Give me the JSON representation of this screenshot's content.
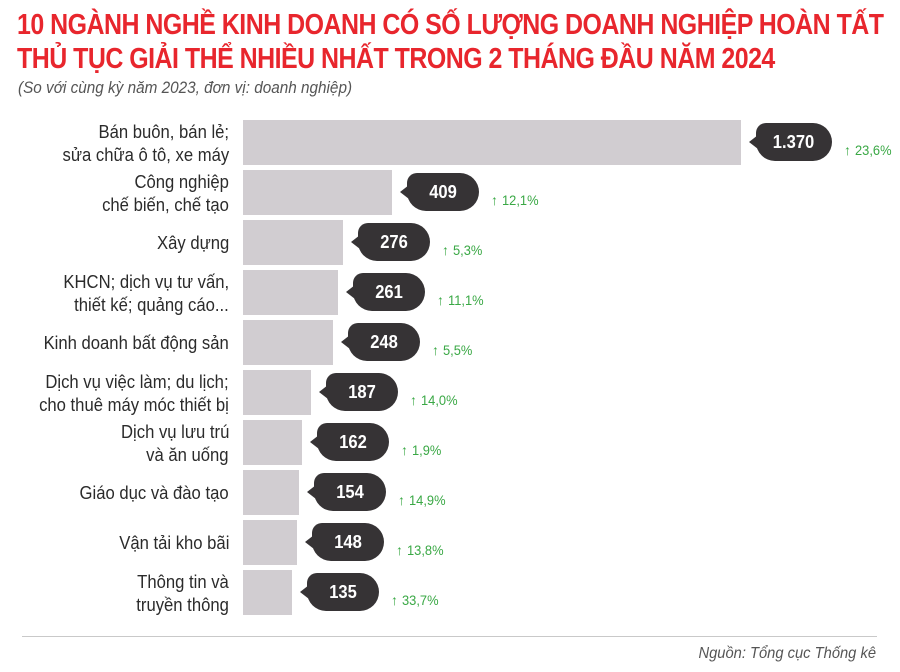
{
  "header": {
    "title_line1": "10 NGÀNH NGHỀ KINH DOANH CÓ SỐ LƯỢNG DOANH NGHIỆP HOÀN TẤT",
    "title_line2": "THỦ TỤC GIẢI THỂ NHIỀU NHẤT TRONG 2 THÁNG ĐẦU NĂM 2024",
    "subtitle": "(So với cùng kỳ năm 2023, đơn vị: doanh nghiệp)"
  },
  "footer": {
    "source": "Nguồn: Tổng cục Thống kê"
  },
  "colors": {
    "title": "#e8262d",
    "bar": "#d1cdd1",
    "bubble": "#363335",
    "increase": "#3aa845",
    "label": "#2b2b2b"
  },
  "icons": {
    "increase": "up-arrow-icon"
  },
  "rows": [
    {
      "label_line1": "Bán buôn, bán lẻ;",
      "label_line2": "sửa chữa ô tô, xe máy",
      "value_text": "1.370",
      "change": "23,6%",
      "arrow": "↑"
    },
    {
      "label_line1": "Công nghiệp",
      "label_line2": "chế biến, chế tạo",
      "value_text": "409",
      "change": "12,1%",
      "arrow": "↑"
    },
    {
      "label_line1": "Xây dựng",
      "label_line2": "",
      "value_text": "276",
      "change": "5,3%",
      "arrow": "↑"
    },
    {
      "label_line1": "KHCN; dịch vụ tư vấn,",
      "label_line2": "thiết kế; quảng cáo...",
      "value_text": "261",
      "change": "11,1%",
      "arrow": "↑"
    },
    {
      "label_line1": "Kinh doanh bất động sản",
      "label_line2": "",
      "value_text": "248",
      "change": "5,5%",
      "arrow": "↑"
    },
    {
      "label_line1": "Dịch vụ việc làm; du lịch;",
      "label_line2": "cho thuê máy móc thiết bị",
      "value_text": "187",
      "change": "14,0%",
      "arrow": "↑"
    },
    {
      "label_line1": "Dịch vụ lưu trú",
      "label_line2": "và ăn uống",
      "value_text": "162",
      "change": "1,9%",
      "arrow": "↑"
    },
    {
      "label_line1": "Giáo dục và đào tạo",
      "label_line2": "",
      "value_text": "154",
      "change": "14,9%",
      "arrow": "↑"
    },
    {
      "label_line1": "Vận tải kho bãi",
      "label_line2": "",
      "value_text": "148",
      "change": "13,8%",
      "arrow": "↑"
    },
    {
      "label_line1": "Thông tin và",
      "label_line2": "truyền thông",
      "value_text": "135",
      "change": "33,7%",
      "arrow": "↑"
    }
  ],
  "chart_data": {
    "type": "bar",
    "orientation": "horizontal",
    "title": "10 NGÀNH NGHỀ KINH DOANH CÓ SỐ LƯỢNG DOANH NGHIỆP HOÀN TẤT THỦ TỤC GIẢI THỂ NHIỀU NHẤT TRONG 2 THÁNG ĐẦU NĂM 2024",
    "subtitle": "(So với cùng kỳ năm 2023, đơn vị: doanh nghiệp)",
    "xlabel": "",
    "ylabel": "",
    "unit": "doanh nghiệp",
    "categories": [
      "Bán buôn, bán lẻ; sửa chữa ô tô, xe máy",
      "Công nghiệp chế biến, chế tạo",
      "Xây dựng",
      "KHCN; dịch vụ tư vấn, thiết kế; quảng cáo...",
      "Kinh doanh bất động sản",
      "Dịch vụ việc làm; du lịch; cho thuê máy móc thiết bị",
      "Dịch vụ lưu trú và ăn uống",
      "Giáo dục và đào tạo",
      "Vận tải kho bãi",
      "Thông tin và truyền thông"
    ],
    "series": [
      {
        "name": "Số doanh nghiệp hoàn tất thủ tục giải thể",
        "values": [
          1370,
          409,
          276,
          261,
          248,
          187,
          162,
          154,
          148,
          135
        ]
      },
      {
        "name": "So với cùng kỳ năm 2023 (%)",
        "values": [
          23.6,
          12.1,
          5.3,
          11.1,
          5.5,
          14.0,
          1.9,
          14.9,
          13.8,
          33.7
        ],
        "direction": [
          "up",
          "up",
          "up",
          "up",
          "up",
          "up",
          "up",
          "up",
          "up",
          "up"
        ]
      }
    ],
    "xlim": [
      0,
      1370
    ],
    "grid": false,
    "legend": "none",
    "annotations": [
      "Nguồn: Tổng cục Thống kê"
    ]
  }
}
